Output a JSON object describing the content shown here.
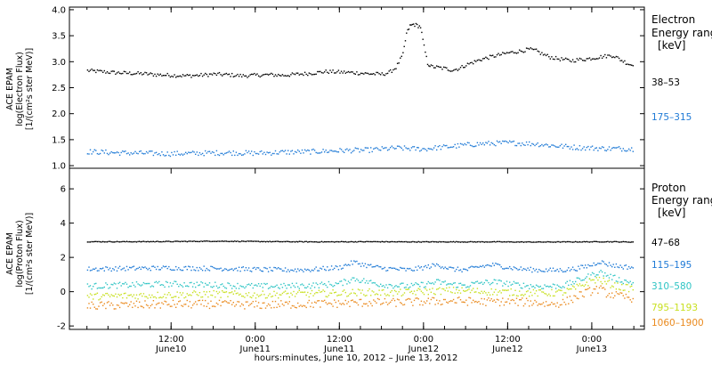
{
  "chart_data": [
    {
      "type": "scatter",
      "panel": "electron",
      "ylabel_lines": [
        "ACE EPAM",
        "log(Electron Flux)",
        "[1/(cm²s ster MeV)]"
      ],
      "ylim": [
        0.95,
        4.05
      ],
      "yticks": [
        "1.0",
        "1.5",
        "2.0",
        "2.5",
        "3.0",
        "3.5",
        "4.0"
      ],
      "legend_title_lines": [
        "Electron",
        "Energy range",
        "[keV]"
      ],
      "series": [
        {
          "name": "38–53",
          "color": "#000000",
          "points": [
            [
              0,
              2.84
            ],
            [
              2,
              2.82
            ],
            [
              4,
              2.8
            ],
            [
              6,
              2.79
            ],
            [
              8,
              2.78
            ],
            [
              10,
              2.76
            ],
            [
              12,
              2.75
            ],
            [
              14,
              2.74
            ],
            [
              16,
              2.75
            ],
            [
              18,
              2.77
            ],
            [
              20,
              2.76
            ],
            [
              22,
              2.74
            ],
            [
              24,
              2.75
            ],
            [
              26,
              2.76
            ],
            [
              28,
              2.75
            ],
            [
              30,
              2.77
            ],
            [
              32,
              2.79
            ],
            [
              34,
              2.82
            ],
            [
              36,
              2.81
            ],
            [
              38,
              2.8
            ],
            [
              40,
              2.78
            ],
            [
              42,
              2.77
            ],
            [
              43,
              2.8
            ],
            [
              44,
              2.9
            ],
            [
              45,
              3.15
            ],
            [
              45.5,
              3.55
            ],
            [
              46,
              3.7
            ],
            [
              46.5,
              3.73
            ],
            [
              47,
              3.71
            ],
            [
              47.5,
              3.68
            ],
            [
              48,
              3.3
            ],
            [
              48.5,
              2.98
            ],
            [
              49,
              2.92
            ],
            [
              50,
              2.9
            ],
            [
              51,
              2.88
            ],
            [
              52,
              2.85
            ],
            [
              53,
              2.88
            ],
            [
              54,
              2.95
            ],
            [
              55,
              3.0
            ],
            [
              56,
              3.05
            ],
            [
              58,
              3.12
            ],
            [
              60,
              3.18
            ],
            [
              62,
              3.22
            ],
            [
              63,
              3.25
            ],
            [
              64,
              3.22
            ],
            [
              65,
              3.15
            ],
            [
              66,
              3.1
            ],
            [
              67,
              3.07
            ],
            [
              68,
              3.05
            ],
            [
              69,
              3.03
            ],
            [
              70,
              3.05
            ],
            [
              71,
              3.06
            ],
            [
              72,
              3.08
            ],
            [
              73,
              3.1
            ],
            [
              74,
              3.12
            ],
            [
              75,
              3.13
            ],
            [
              76,
              3.05
            ],
            [
              77,
              2.98
            ],
            [
              78,
              2.93
            ]
          ]
        },
        {
          "name": "175–315",
          "color": "#1f7ad6",
          "points": [
            [
              0,
              1.28
            ],
            [
              4,
              1.26
            ],
            [
              8,
              1.25
            ],
            [
              12,
              1.24
            ],
            [
              16,
              1.25
            ],
            [
              20,
              1.26
            ],
            [
              24,
              1.25
            ],
            [
              28,
              1.27
            ],
            [
              32,
              1.28
            ],
            [
              36,
              1.3
            ],
            [
              40,
              1.31
            ],
            [
              42,
              1.33
            ],
            [
              44,
              1.35
            ],
            [
              46,
              1.34
            ],
            [
              48,
              1.33
            ],
            [
              50,
              1.36
            ],
            [
              52,
              1.38
            ],
            [
              54,
              1.41
            ],
            [
              56,
              1.43
            ],
            [
              58,
              1.44
            ],
            [
              60,
              1.45
            ],
            [
              62,
              1.44
            ],
            [
              64,
              1.43
            ],
            [
              66,
              1.4
            ],
            [
              68,
              1.38
            ],
            [
              70,
              1.36
            ],
            [
              72,
              1.35
            ],
            [
              74,
              1.34
            ],
            [
              76,
              1.34
            ],
            [
              78,
              1.33
            ]
          ]
        }
      ]
    },
    {
      "type": "scatter",
      "panel": "proton",
      "ylabel_lines": [
        "ACE EPAM",
        "log(Proton Flux)",
        "[1/(cm²s ster MeV)]"
      ],
      "ylim": [
        -2.2,
        7.2
      ],
      "yticks": [
        "-2",
        "0",
        "2",
        "4",
        "6"
      ],
      "legend_title_lines": [
        "Proton",
        "Energy range",
        "[keV]"
      ],
      "series": [
        {
          "name": "47–68",
          "color": "#000000",
          "points": [
            [
              0,
              2.95
            ],
            [
              6,
              2.95
            ],
            [
              12,
              2.96
            ],
            [
              18,
              2.98
            ],
            [
              22,
              2.97
            ],
            [
              28,
              2.95
            ],
            [
              34,
              2.94
            ],
            [
              40,
              2.95
            ],
            [
              46,
              2.94
            ],
            [
              52,
              2.94
            ],
            [
              58,
              2.94
            ],
            [
              64,
              2.93
            ],
            [
              70,
              2.94
            ],
            [
              74,
              2.95
            ],
            [
              78,
              2.93
            ]
          ]
        },
        {
          "name": "115–195",
          "color": "#1f7ad6",
          "points": [
            [
              0,
              1.35
            ],
            [
              4,
              1.38
            ],
            [
              8,
              1.4
            ],
            [
              12,
              1.42
            ],
            [
              16,
              1.4
            ],
            [
              20,
              1.38
            ],
            [
              24,
              1.33
            ],
            [
              28,
              1.3
            ],
            [
              32,
              1.32
            ],
            [
              36,
              1.45
            ],
            [
              38,
              1.75
            ],
            [
              40,
              1.55
            ],
            [
              42,
              1.4
            ],
            [
              44,
              1.35
            ],
            [
              46,
              1.3
            ],
            [
              48,
              1.45
            ],
            [
              50,
              1.6
            ],
            [
              52,
              1.35
            ],
            [
              54,
              1.3
            ],
            [
              56,
              1.5
            ],
            [
              58,
              1.6
            ],
            [
              60,
              1.45
            ],
            [
              62,
              1.35
            ],
            [
              64,
              1.3
            ],
            [
              66,
              1.28
            ],
            [
              68,
              1.3
            ],
            [
              70,
              1.4
            ],
            [
              72,
              1.6
            ],
            [
              73,
              1.8
            ],
            [
              74,
              1.65
            ],
            [
              76,
              1.5
            ],
            [
              78,
              1.45
            ]
          ]
        },
        {
          "name": "310–580",
          "color": "#2ec4c4",
          "points": [
            [
              0,
              0.35
            ],
            [
              4,
              0.4
            ],
            [
              8,
              0.45
            ],
            [
              12,
              0.48
            ],
            [
              16,
              0.45
            ],
            [
              20,
              0.4
            ],
            [
              24,
              0.35
            ],
            [
              28,
              0.35
            ],
            [
              32,
              0.4
            ],
            [
              36,
              0.5
            ],
            [
              38,
              0.8
            ],
            [
              40,
              0.6
            ],
            [
              42,
              0.45
            ],
            [
              44,
              0.4
            ],
            [
              46,
              0.35
            ],
            [
              48,
              0.45
            ],
            [
              50,
              0.6
            ],
            [
              52,
              0.45
            ],
            [
              54,
              0.4
            ],
            [
              56,
              0.55
            ],
            [
              58,
              0.6
            ],
            [
              60,
              0.5
            ],
            [
              62,
              0.4
            ],
            [
              64,
              0.35
            ],
            [
              66,
              0.35
            ],
            [
              68,
              0.4
            ],
            [
              70,
              0.7
            ],
            [
              72,
              1.0
            ],
            [
              73,
              1.2
            ],
            [
              74,
              1.0
            ],
            [
              76,
              0.7
            ],
            [
              78,
              0.55
            ]
          ]
        },
        {
          "name": "795–1193",
          "color": "#c8e020",
          "points": [
            [
              0,
              -0.25
            ],
            [
              6,
              -0.2
            ],
            [
              12,
              -0.15
            ],
            [
              18,
              -0.1
            ],
            [
              24,
              -0.15
            ],
            [
              30,
              -0.1
            ],
            [
              36,
              -0.05
            ],
            [
              40,
              0.0
            ],
            [
              44,
              -0.05
            ],
            [
              48,
              0.05
            ],
            [
              52,
              0.1
            ],
            [
              56,
              0.05
            ],
            [
              60,
              0.0
            ],
            [
              64,
              -0.05
            ],
            [
              66,
              -0.05
            ],
            [
              68,
              0.0
            ],
            [
              70,
              0.3
            ],
            [
              72,
              0.7
            ],
            [
              73,
              0.75
            ],
            [
              74,
              0.55
            ],
            [
              76,
              0.3
            ],
            [
              78,
              0.2
            ]
          ]
        },
        {
          "name": "1060–1900",
          "color": "#ea8a1e",
          "points": [
            [
              0,
              -0.8
            ],
            [
              6,
              -0.75
            ],
            [
              12,
              -0.7
            ],
            [
              18,
              -0.7
            ],
            [
              24,
              -0.75
            ],
            [
              30,
              -0.7
            ],
            [
              36,
              -0.65
            ],
            [
              40,
              -0.6
            ],
            [
              44,
              -0.6
            ],
            [
              48,
              -0.55
            ],
            [
              52,
              -0.5
            ],
            [
              56,
              -0.55
            ],
            [
              60,
              -0.55
            ],
            [
              64,
              -0.6
            ],
            [
              66,
              -0.7
            ],
            [
              68,
              -0.6
            ],
            [
              70,
              -0.2
            ],
            [
              72,
              0.1
            ],
            [
              73,
              0.2
            ],
            [
              74,
              -0.05
            ],
            [
              76,
              -0.25
            ],
            [
              78,
              -0.35
            ]
          ]
        }
      ]
    }
  ],
  "x_axis": {
    "ticks": [
      {
        "h": 12,
        "time": "12:00",
        "date": "June10"
      },
      {
        "h": 24,
        "time": "0:00",
        "date": "June11"
      },
      {
        "h": 36,
        "time": "12:00",
        "date": "June11"
      },
      {
        "h": 48,
        "time": "0:00",
        "date": "June12"
      },
      {
        "h": 60,
        "time": "12:00",
        "date": "June12"
      },
      {
        "h": 72,
        "time": "0:00",
        "date": "June13"
      }
    ],
    "range_hours": [
      3.5,
      85.5
    ],
    "data_start_hours": 6,
    "xlabel": "hours:minutes, June 10, 2012 – June 13, 2012"
  }
}
